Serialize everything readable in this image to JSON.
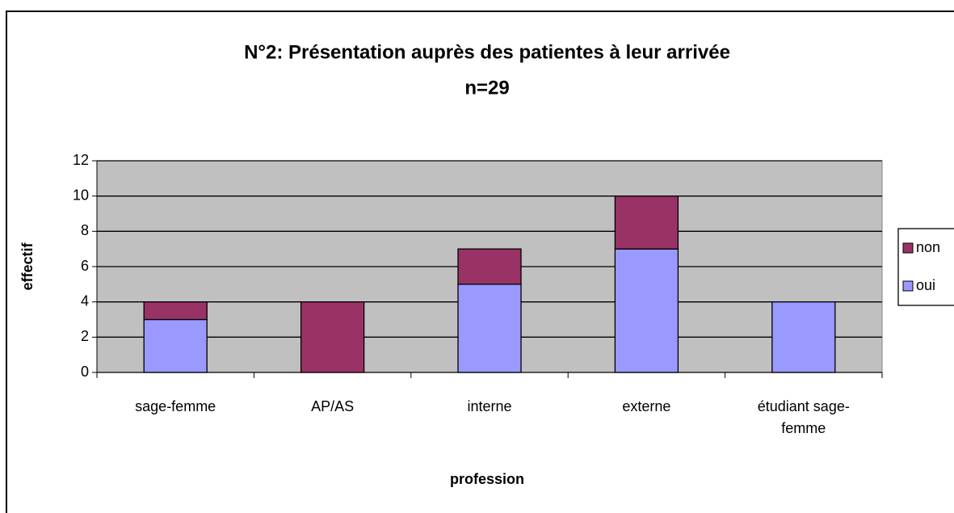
{
  "chart_data": {
    "type": "stacked_bar",
    "title": "N°2: Présentation auprès des patientes à leur arrivée",
    "subtitle": "n=29",
    "x_label": "profession",
    "y_label": "effectif",
    "categories": [
      "sage-femme",
      "AP/AS",
      "interne",
      "externe",
      "étudiant sage-femme"
    ],
    "series": [
      {
        "name": "oui",
        "color": "#9999ff",
        "values": [
          3,
          0,
          5,
          7,
          4
        ]
      },
      {
        "name": "non",
        "color": "#993366",
        "values": [
          1,
          4,
          2,
          3,
          0
        ]
      }
    ],
    "ylim": [
      0,
      12
    ],
    "yticks": [
      0,
      2,
      4,
      6,
      8,
      10,
      12
    ],
    "grid": true,
    "legend": "right"
  }
}
